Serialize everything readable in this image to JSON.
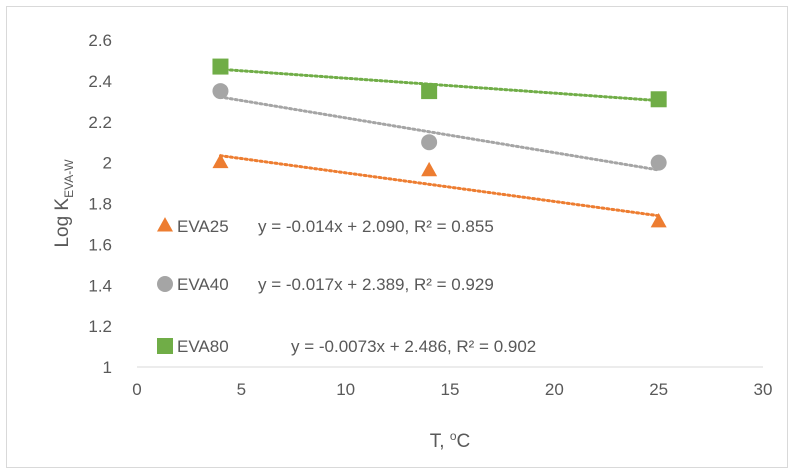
{
  "chart_data": {
    "type": "scatter",
    "xlabel": {
      "main": "T, ",
      "sup": "o",
      "tail": "C"
    },
    "ylabel": {
      "main": "Log K",
      "sub": "EVA-W"
    },
    "xlim": [
      0,
      30
    ],
    "ylim": [
      1,
      2.6
    ],
    "x_ticks": [
      0,
      5,
      10,
      15,
      20,
      25,
      30
    ],
    "y_ticks": [
      1,
      1.2,
      1.4,
      1.6,
      1.8,
      2,
      2.2,
      2.4,
      2.6
    ],
    "x_tick_labels": [
      "0",
      "5",
      "10",
      "15",
      "20",
      "25",
      "30"
    ],
    "y_tick_labels": [
      "1",
      "1.2",
      "1.4",
      "1.6",
      "1.8",
      "2",
      "2.2",
      "2.4",
      "2.6"
    ],
    "grid": "none",
    "series": [
      {
        "name": "EVA25",
        "marker": "triangle",
        "color": "#ed7d31",
        "x": [
          4,
          14,
          25
        ],
        "y": [
          2.0,
          1.96,
          1.71
        ],
        "trendline": {
          "slope": -0.014,
          "intercept": 2.09
        },
        "equation": "y = -0.014x + 2.090,  R² = 0.855"
      },
      {
        "name": "EVA40",
        "marker": "circle",
        "color": "#a5a5a5",
        "x": [
          4,
          14,
          25
        ],
        "y": [
          2.35,
          2.1,
          2.0
        ],
        "trendline": {
          "slope": -0.017,
          "intercept": 2.389
        },
        "equation": "y = -0.017x + 2.389, R² = 0.929"
      },
      {
        "name": "EVA80",
        "marker": "square",
        "color": "#70ad47",
        "x": [
          4,
          14,
          25
        ],
        "y": [
          2.47,
          2.35,
          2.31
        ],
        "trendline": {
          "slope": -0.0073,
          "intercept": 2.486
        },
        "equation": "y = -0.0073x + 2.486, R² = 0.902"
      }
    ]
  }
}
